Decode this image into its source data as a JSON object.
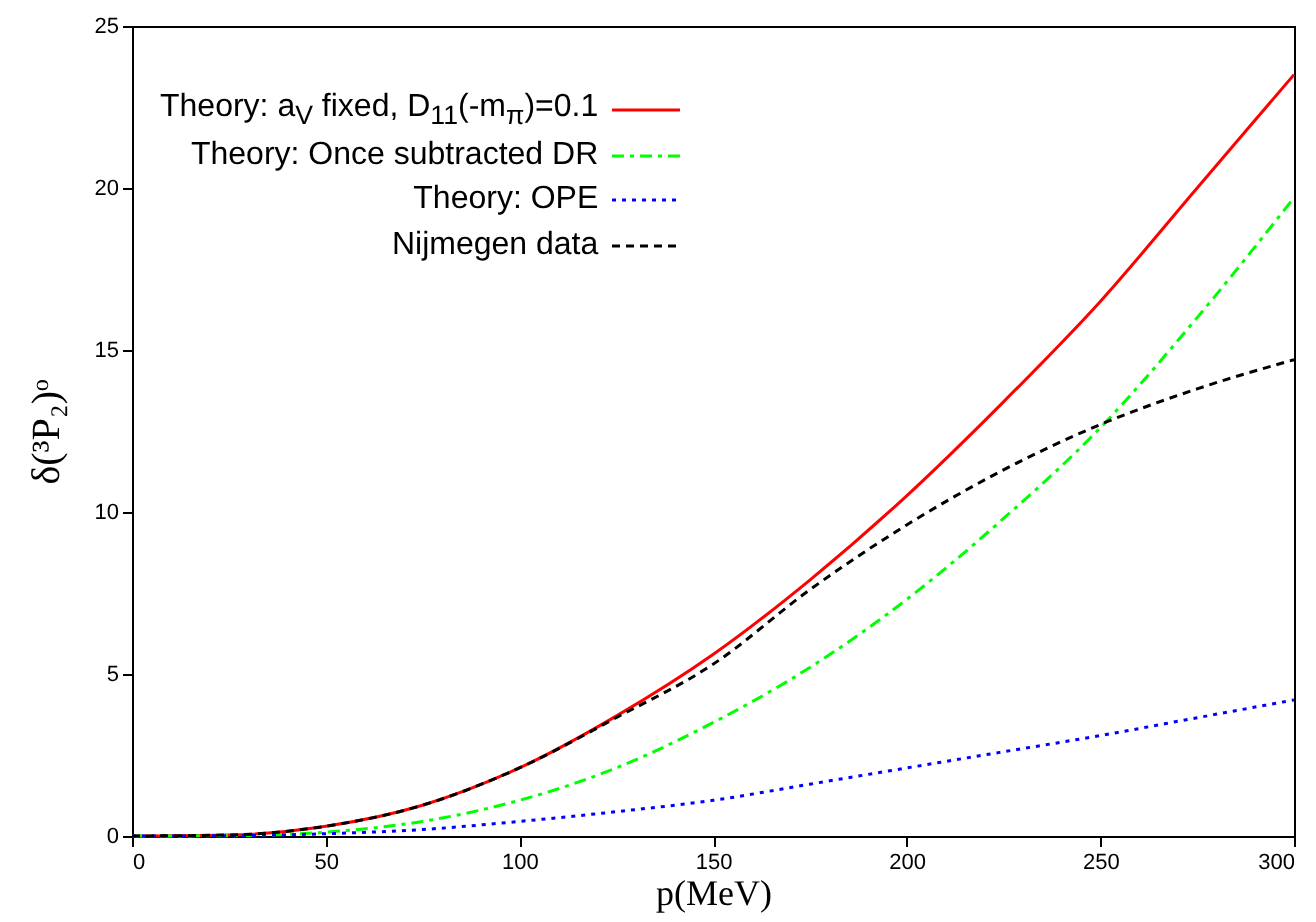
{
  "chart_data": {
    "type": "line",
    "xlabel": "p(MeV)",
    "ylabel": "δ(³P₂)ᵒ",
    "x": [
      0,
      25,
      50,
      75,
      100,
      125,
      150,
      175,
      200,
      225,
      250,
      275,
      300
    ],
    "series": [
      {
        "name": "Theory: a$_{V}$ fixed, D$_{11}$(-m$_{π}$)=0.1",
        "color": "#ff0000",
        "line_style": "solid",
        "values": [
          0,
          0.03,
          0.3,
          0.95,
          2.1,
          3.7,
          5.6,
          7.9,
          10.5,
          13.4,
          16.5,
          20,
          23.5
        ]
      },
      {
        "name": "Theory: Once subtracted DR",
        "color": "#00ff00",
        "line_style": "dashdot",
        "values": [
          0,
          0.01,
          0.12,
          0.45,
          1.1,
          2.1,
          3.5,
          5.2,
          7.3,
          9.8,
          12.6,
          16,
          19.7
        ]
      },
      {
        "name": "Theory: OPE",
        "color": "#0000ff",
        "line_style": "dotted",
        "values": [
          0,
          0.01,
          0.07,
          0.2,
          0.45,
          0.75,
          1.1,
          1.6,
          2.1,
          2.6,
          3.1,
          3.65,
          4.2
        ]
      },
      {
        "name": "Nijmegen data",
        "color": "#000000",
        "line_style": "dashed",
        "values": [
          0,
          0.03,
          0.3,
          0.95,
          2.1,
          3.65,
          5.3,
          7.6,
          9.6,
          11.3,
          12.7,
          13.8,
          14.7
        ]
      }
    ],
    "xlim": [
      0,
      300
    ],
    "xticks": [
      0,
      50,
      100,
      150,
      200,
      250,
      300
    ],
    "ylim": [
      0,
      25
    ],
    "yticks": [
      0,
      5,
      10,
      15,
      20,
      25
    ],
    "grid": false,
    "legend": "top left",
    "marker": "none"
  }
}
